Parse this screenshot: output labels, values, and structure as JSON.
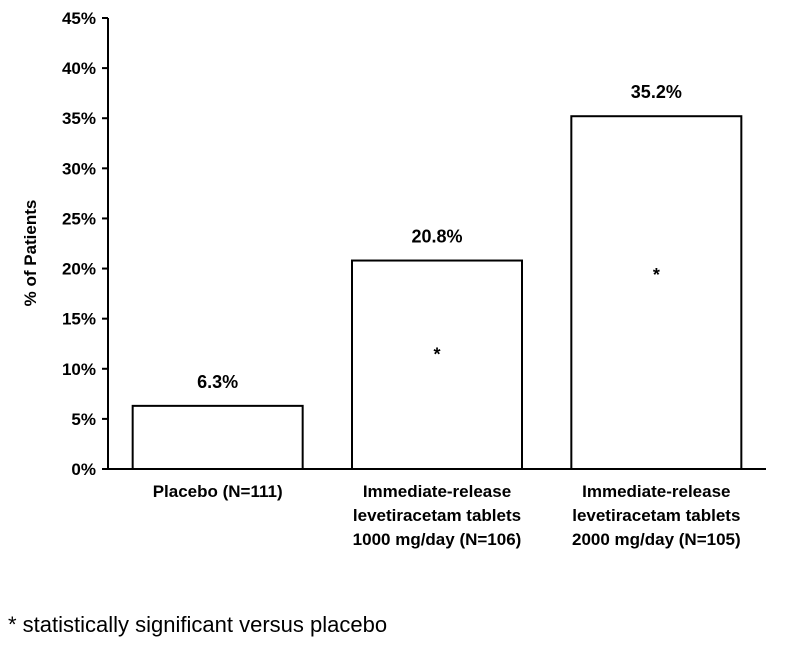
{
  "chart_data": {
    "type": "bar",
    "categories": [
      [
        "Placebo (N=111)"
      ],
      [
        "Immediate-release",
        "levetiracetam tablets",
        "1000 mg/day (N=106)"
      ],
      [
        "Immediate-release",
        "levetiracetam tablets",
        "2000 mg/day (N=105)"
      ]
    ],
    "values": [
      6.3,
      20.8,
      35.2
    ],
    "data_labels": [
      "6.3%",
      "20.8%",
      "35.2%"
    ],
    "significance_marks": [
      "",
      "*",
      "*"
    ],
    "title": "",
    "xlabel": "",
    "ylabel": "% of Patients",
    "ylim": [
      0,
      45
    ],
    "yticks": [
      "0%",
      "5%",
      "10%",
      "15%",
      "20%",
      "25%",
      "30%",
      "35%",
      "40%",
      "45%"
    ],
    "grid": false,
    "legend": "none",
    "bar_fill": "#ffffff",
    "bar_stroke": "#000000"
  },
  "footnote": "* statistically significant versus placebo"
}
